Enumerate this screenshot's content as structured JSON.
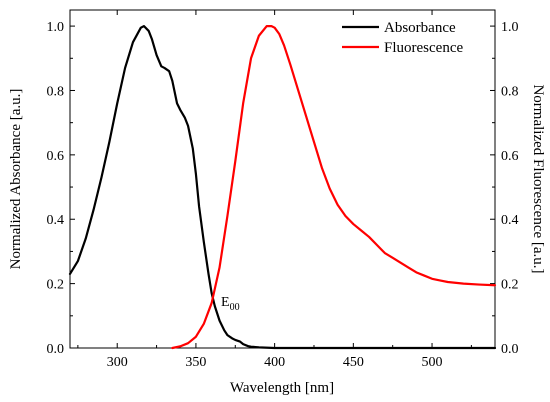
{
  "chart_data": {
    "type": "line",
    "xlabel": "Wavelength [nm]",
    "ylabel_left": "Normalized Absorbance [a.u.]",
    "ylabel_right": "Normalized Fluorescence [a.u.]",
    "xlim": [
      270,
      540
    ],
    "ylim": [
      0,
      1.05
    ],
    "x_ticks": [
      300,
      350,
      400,
      450,
      500
    ],
    "y_ticks": [
      0.0,
      0.2,
      0.4,
      0.6,
      0.8,
      1.0
    ],
    "y_tick_labels": [
      "0.0",
      "0.2",
      "0.4",
      "0.6",
      "0.8",
      "1.0"
    ],
    "grid": false,
    "legend_position": "top-right",
    "annotation": {
      "text": "E",
      "subscript": "00",
      "x": 364,
      "y": 0.17
    },
    "series": [
      {
        "name": "Absorbance",
        "color": "#000000",
        "x": [
          270,
          275,
          280,
          285,
          290,
          295,
          300,
          305,
          310,
          315,
          317,
          320,
          322,
          325,
          328,
          330,
          333,
          335,
          338,
          340,
          343,
          345,
          348,
          350,
          352,
          355,
          358,
          360,
          362,
          365,
          368,
          370,
          373,
          375,
          378,
          380,
          383,
          385,
          390,
          400,
          420,
          450,
          500,
          540
        ],
        "values": [
          0.23,
          0.27,
          0.34,
          0.43,
          0.53,
          0.64,
          0.76,
          0.87,
          0.95,
          0.995,
          1.0,
          0.985,
          0.96,
          0.91,
          0.875,
          0.87,
          0.86,
          0.83,
          0.76,
          0.74,
          0.715,
          0.69,
          0.62,
          0.54,
          0.44,
          0.33,
          0.23,
          0.17,
          0.13,
          0.085,
          0.055,
          0.04,
          0.03,
          0.025,
          0.02,
          0.012,
          0.006,
          0.004,
          0.002,
          0.0,
          0.0,
          0.0,
          0.0,
          0.0
        ]
      },
      {
        "name": "Fluorescence",
        "color": "#ff0000",
        "x": [
          335,
          340,
          345,
          350,
          355,
          360,
          365,
          370,
          375,
          380,
          385,
          390,
          395,
          398,
          400,
          403,
          406,
          410,
          415,
          420,
          425,
          430,
          435,
          440,
          445,
          450,
          455,
          460,
          465,
          470,
          475,
          480,
          485,
          490,
          495,
          500,
          505,
          510,
          520,
          530,
          540
        ],
        "values": [
          0.0,
          0.005,
          0.015,
          0.035,
          0.075,
          0.14,
          0.25,
          0.41,
          0.58,
          0.76,
          0.9,
          0.97,
          1.0,
          1.0,
          0.995,
          0.975,
          0.94,
          0.88,
          0.8,
          0.72,
          0.64,
          0.56,
          0.495,
          0.445,
          0.41,
          0.385,
          0.365,
          0.345,
          0.32,
          0.295,
          0.28,
          0.265,
          0.25,
          0.235,
          0.225,
          0.215,
          0.21,
          0.205,
          0.2,
          0.197,
          0.195
        ]
      }
    ]
  }
}
